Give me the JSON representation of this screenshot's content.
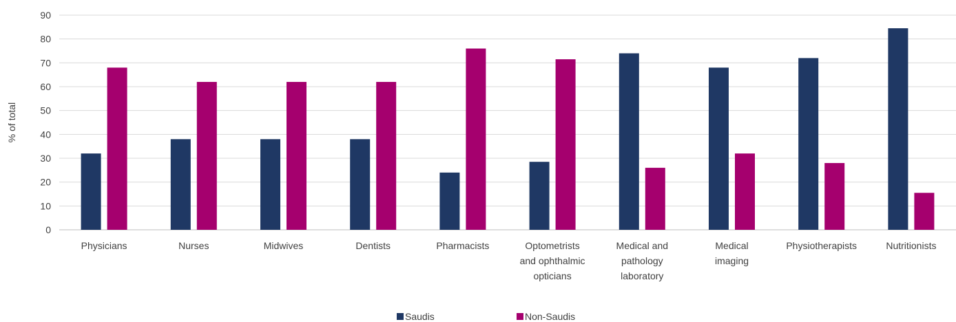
{
  "chart_data": {
    "type": "bar",
    "title": "",
    "xlabel": "",
    "ylabel": "% of total",
    "ylim": [
      0,
      90
    ],
    "yticks": [
      0,
      10,
      20,
      30,
      40,
      50,
      60,
      70,
      80,
      90
    ],
    "grid": true,
    "legend_position": "bottom",
    "categories": [
      [
        "Physicians"
      ],
      [
        "Nurses"
      ],
      [
        "Midwives"
      ],
      [
        "Dentists"
      ],
      [
        "Pharmacists"
      ],
      [
        "Optometrists",
        "and ophthalmic",
        "opticians"
      ],
      [
        "Medical and",
        "pathology",
        "laboratory"
      ],
      [
        "Medical",
        "imaging"
      ],
      [
        "Physiotherapists"
      ],
      [
        "Nutritionists"
      ]
    ],
    "series": [
      {
        "name": "Saudis",
        "color": "#1f3864",
        "values": [
          32,
          38,
          38,
          38,
          24,
          28.5,
          74,
          68,
          72,
          84.5
        ]
      },
      {
        "name": "Non-Saudis",
        "color": "#a5006e",
        "values": [
          68,
          62,
          62,
          62,
          76,
          71.5,
          26,
          32,
          28,
          15.5
        ]
      }
    ]
  }
}
